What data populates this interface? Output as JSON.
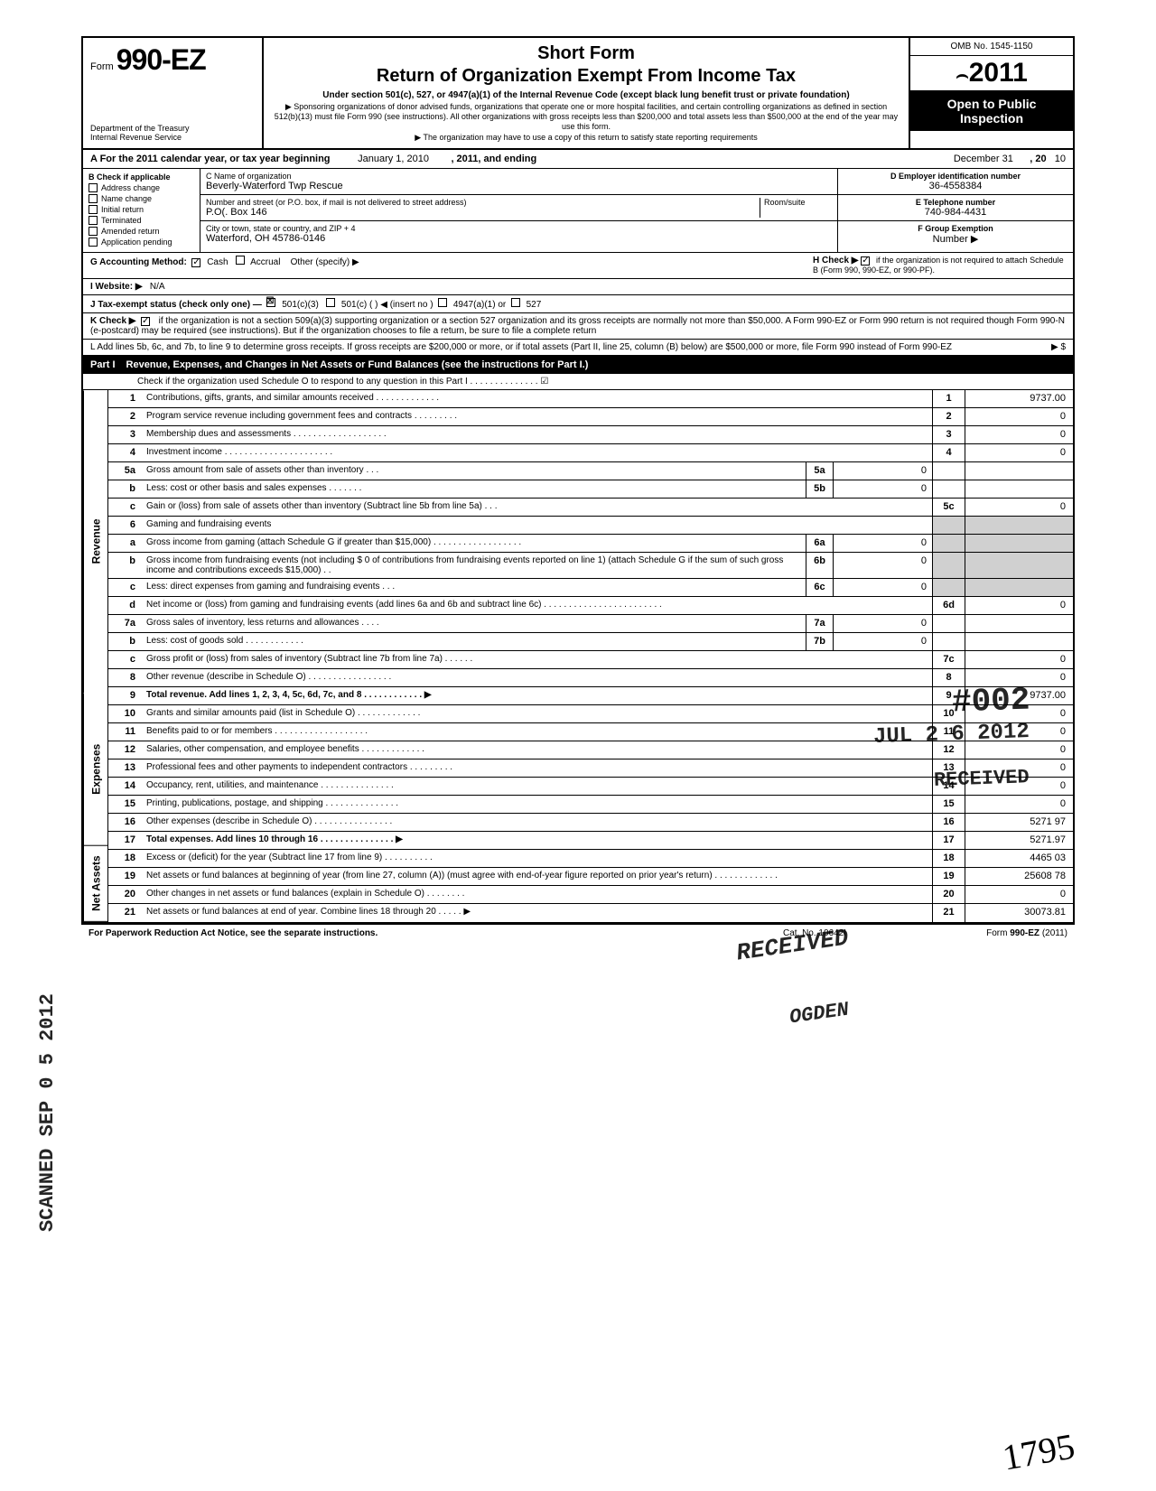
{
  "header": {
    "form_prefix": "Form",
    "form_number": "990-EZ",
    "dept1": "Department of the Treasury",
    "dept2": "Internal Revenue Service",
    "short_form": "Short Form",
    "title": "Return of Organization Exempt From Income Tax",
    "subtitle": "Under section 501(c), 527, or 4947(a)(1) of the Internal Revenue Code (except black lung benefit trust or private foundation)",
    "note1": "▶ Sponsoring organizations of donor advised funds, organizations that operate one or more hospital facilities, and certain controlling organizations as defined in section 512(b)(13) must file Form 990 (see instructions). All other organizations with gross receipts less than $200,000 and total assets less than $500,000 at the end of the year may use this form.",
    "note2": "▶ The organization may have to use a copy of this return to satisfy state reporting requirements",
    "omb": "OMB No. 1545-1150",
    "year": "2011",
    "open_public1": "Open to Public",
    "open_public2": "Inspection"
  },
  "rowA": {
    "prefix": "A  For the 2011 calendar year, or tax year beginning",
    "begin": "January 1, 2010",
    "mid": ", 2011, and ending",
    "end_month": "December 31",
    "end_year_label": ", 20",
    "end_year": "10"
  },
  "colB": {
    "header": "B  Check if applicable",
    "items": [
      "Address change",
      "Name change",
      "Initial return",
      "Terminated",
      "Amended return",
      "Application pending"
    ]
  },
  "colC": {
    "c_label": "C  Name of organization",
    "name": "Beverly-Waterford Twp  Rescue",
    "addr_label": "Number and street (or P.O. box, if mail is not delivered to street address)",
    "room_label": "Room/suite",
    "addr": "P.O(. Box 146",
    "city_label": "City or town, state or country, and ZIP + 4",
    "city": "Waterford, OH  45786-0146"
  },
  "colDE": {
    "d_label": "D Employer identification number",
    "ein": "36-4558384",
    "e_label": "E  Telephone number",
    "phone": "740-984-4431",
    "f_label": "F  Group Exemption",
    "f_label2": "Number  ▶"
  },
  "lineG": {
    "label": "G  Accounting Method:",
    "cash": "Cash",
    "accrual": "Accrual",
    "other": "Other (specify) ▶",
    "h_label": "H  Check ▶",
    "h_text": "if the organization is not required to attach Schedule B (Form 990, 990-EZ, or 990-PF)."
  },
  "lineI": {
    "label": "I   Website: ▶",
    "value": "N/A"
  },
  "lineJ": {
    "label": "J  Tax-exempt status (check only one) —",
    "opt1": "501(c)(3)",
    "opt2": "501(c) (          )  ◀ (insert no )",
    "opt3": "4947(a)(1) or",
    "opt4": "527"
  },
  "lineK": {
    "label": "K  Check ▶",
    "text": "if the organization is not a section 509(a)(3) supporting organization or a section 527 organization and its gross receipts are normally not more than $50,000. A Form 990-EZ or Form 990 return is not required though Form 990-N (e-postcard) may be required (see instructions). But if the organization chooses to file a return, be sure to file a complete return"
  },
  "lineL": {
    "text": "L  Add lines 5b, 6c, and 7b, to line 9 to determine gross receipts. If gross receipts are $200,000 or more, or if total assets (Part II, line 25, column (B) below) are $500,000 or more, file Form 990 instead of Form 990-EZ",
    "arrow": "▶  $"
  },
  "part1": {
    "label": "Part I",
    "title": "Revenue, Expenses, and Changes in Net Assets or Fund Balances (see the instructions for Part I.)",
    "check_line": "Check if the organization used Schedule O to respond to any question in this Part I  .  .  .  .  .  .  .  .  .  .  .  .  .  .  ☑"
  },
  "sections": {
    "revenue": "Revenue",
    "expenses": "Expenses",
    "netassets": "Net Assets"
  },
  "lines": [
    {
      "no": "1",
      "text": "Contributions, gifts, grants, and similar amounts received .   .   .   .   .   .   .   .   .   .   .   .   .",
      "num": "1",
      "val": "9737.00"
    },
    {
      "no": "2",
      "text": "Program service revenue including government fees and contracts    .   .   .   .   .   .   .   .   .",
      "num": "2",
      "val": "0"
    },
    {
      "no": "3",
      "text": "Membership dues and assessments .   .   .   .   .   .   .   .   .   .   .   .   .   .   .   .   .   .   .",
      "num": "3",
      "val": "0"
    },
    {
      "no": "4",
      "text": "Investment income    .   .   .   .   .   .   .   .   .   .   .   .   .   .   .   .   .   .   .   .   .   .",
      "num": "4",
      "val": "0"
    },
    {
      "no": "5a",
      "text": "Gross amount from sale of assets other than inventory    .   .   .",
      "subno": "5a",
      "subval": "0"
    },
    {
      "no": "b",
      "text": "Less: cost or other basis and sales expenses .   .   .   .   .   .   .",
      "subno": "5b",
      "subval": "0"
    },
    {
      "no": "c",
      "text": "Gain or (loss) from sale of assets other than inventory (Subtract line 5b from line 5a) .   .   .",
      "num": "5c",
      "val": "0"
    },
    {
      "no": "6",
      "text": "Gaming and fundraising events",
      "shaded": true
    },
    {
      "no": "a",
      "text": "Gross income from gaming (attach Schedule G if greater than $15,000) .   .   .   .   .   .   .   .   .   .   .   .   .   .   .   .   .   .",
      "subno": "6a",
      "subval": "0",
      "shaded_right": true
    },
    {
      "no": "b",
      "text": "Gross income from fundraising events (not including  $               0 of contributions from fundraising events reported on line 1) (attach Schedule G if the sum of such gross income and contributions exceeds $15,000) .   .",
      "subno": "6b",
      "subval": "0",
      "shaded_right": true
    },
    {
      "no": "c",
      "text": "Less: direct expenses from gaming and fundraising events    .   .   .",
      "subno": "6c",
      "subval": "0",
      "shaded_right": true
    },
    {
      "no": "d",
      "text": "Net income or (loss) from gaming and fundraising events (add lines 6a and 6b and subtract line 6c)    .   .   .   .   .   .   .   .   .   .   .   .   .   .   .   .   .   .   .   .   .   .   .   .",
      "num": "6d",
      "val": "0"
    },
    {
      "no": "7a",
      "text": "Gross sales of inventory, less returns and allowances   .   .   .   .",
      "subno": "7a",
      "subval": "0"
    },
    {
      "no": "b",
      "text": "Less: cost of goods sold      .   .   .   .   .   .   .   .   .   .   .   .",
      "subno": "7b",
      "subval": "0"
    },
    {
      "no": "c",
      "text": "Gross profit or (loss) from sales of inventory (Subtract line 7b from line 7a) .   .   .   .   .   .",
      "num": "7c",
      "val": "0"
    },
    {
      "no": "8",
      "text": "Other revenue (describe in Schedule O) .   .   .   .   .   .   .   .   .   .   .   .   .   .   .   .   .",
      "num": "8",
      "val": "0"
    },
    {
      "no": "9",
      "text": "Total revenue. Add lines 1, 2, 3, 4, 5c, 6d, 7c, and 8   .   .   .   .   .   .   .   .   .   .   .   .  ▶",
      "num": "9",
      "val": "9737.00",
      "bold": true
    },
    {
      "no": "10",
      "text": "Grants and similar amounts paid (list in Schedule O)    .   .   .   .   .   .   .   .   .   .   .   .   .",
      "num": "10",
      "val": "0"
    },
    {
      "no": "11",
      "text": "Benefits paid to or for members   .   .   .   .   .   .   .   .   .   .   .   .   .   .   .   .   .   .   .",
      "num": "11",
      "val": "0"
    },
    {
      "no": "12",
      "text": "Salaries, other compensation, and employee benefits .   .   .   .   .   .   .   .   .   .   .   .   .",
      "num": "12",
      "val": "0"
    },
    {
      "no": "13",
      "text": "Professional fees and other payments to independent contractors .   .   .   .   .   .   .   .   .",
      "num": "13",
      "val": "0"
    },
    {
      "no": "14",
      "text": "Occupancy, rent, utilities, and maintenance    .   .   .   .   .   .   .   .   .   .   .   .   .   .   .",
      "num": "14",
      "val": "0"
    },
    {
      "no": "15",
      "text": "Printing, publications, postage, and shipping .   .   .   .   .   .   .   .   .   .   .   .   .   .   .",
      "num": "15",
      "val": "0"
    },
    {
      "no": "16",
      "text": "Other expenses (describe in Schedule O) .   .   .   .   .   .   .   .   .   .   .   .   .   .   .   .",
      "num": "16",
      "val": "5271 97"
    },
    {
      "no": "17",
      "text": "Total expenses. Add lines 10 through 16   .   .   .   .   .   .   .   .   .   .   .   .   .   .   .  ▶",
      "num": "17",
      "val": "5271.97",
      "bold": true
    },
    {
      "no": "18",
      "text": "Excess or (deficit) for the year (Subtract line 17 from line 9)    .   .   .   .   .   .   .   .   .   .",
      "num": "18",
      "val": "4465 03"
    },
    {
      "no": "19",
      "text": "Net assets or fund balances at beginning of year (from line 27, column (A)) (must agree with end-of-year figure reported on prior year's return)    .   .   .   .   .   .   .   .   .   .   .   .   .",
      "num": "19",
      "val": "25608 78"
    },
    {
      "no": "20",
      "text": "Other changes in net assets or fund balances (explain in Schedule O) .   .   .   .   .   .   .   .",
      "num": "20",
      "val": "0"
    },
    {
      "no": "21",
      "text": "Net assets or fund balances at end of year. Combine lines 18 through 20    .   .   .   .   .   ▶",
      "num": "21",
      "val": "30073.81"
    }
  ],
  "footer": {
    "left": "For Paperwork Reduction Act Notice, see the separate instructions.",
    "center": "Cat. No. 10642I",
    "right": "Form 990-EZ (2011)"
  },
  "stamps": {
    "s002": "#002",
    "date1": "JUL 2 6 2012",
    "received": "RECEIVED",
    "received2": "RECEIVED",
    "jul2": "JUL",
    "ogden": "OGDEN",
    "scanned": "SCANNED SEP 0 5 2012",
    "hand": "1795"
  }
}
